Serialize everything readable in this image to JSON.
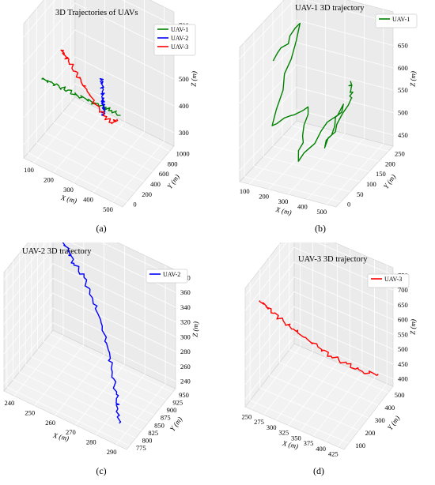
{
  "chart_data": [
    {
      "type": "line",
      "panel_caption": "(a)",
      "title": "3D Trajectories of UAVs",
      "xlabel": "X (m)",
      "ylabel": "Y (m)",
      "zlabel": "Z (m)",
      "xticks": [
        "100",
        "200",
        "300",
        "400",
        "500"
      ],
      "yticks": [
        "0",
        "200",
        "400",
        "600",
        "800",
        "1000"
      ],
      "zticks": [
        "300",
        "400",
        "500",
        "600",
        "700"
      ],
      "legend": [
        "UAV-1",
        "UAV-2",
        "UAV-3"
      ],
      "colors": [
        "#008000",
        "#0000ff",
        "#ff0000"
      ],
      "grid": true,
      "legend_position": "top-right",
      "series": [
        {
          "name": "UAV-1",
          "color": "#008000",
          "x": [
            150,
            190,
            230,
            270,
            310,
            350,
            390,
            430,
            470,
            510
          ],
          "y": [
            250,
            250,
            255,
            250,
            252,
            248,
            250,
            252,
            250,
            250
          ],
          "z": [
            520,
            525,
            520,
            528,
            524,
            530,
            526,
            530,
            534,
            532
          ]
        },
        {
          "name": "UAV-2",
          "color": "#0000ff",
          "x": [
            250,
            255,
            262,
            270,
            276,
            282,
            286,
            288
          ],
          "y": [
            950,
            930,
            910,
            890,
            870,
            850,
            830,
            820
          ],
          "z": [
            360,
            350,
            320,
            300,
            290,
            280,
            260,
            250
          ]
        },
        {
          "name": "UAV-3",
          "color": "#ff0000",
          "x": [
            255,
            260,
            270,
            290,
            310,
            330,
            360,
            390,
            420,
            430
          ],
          "y": [
            200,
            230,
            260,
            300,
            330,
            360,
            390,
            420,
            460,
            500
          ],
          "z": [
            720,
            690,
            660,
            610,
            570,
            520,
            470,
            420,
            390,
            400
          ]
        }
      ]
    },
    {
      "type": "line",
      "panel_caption": "(b)",
      "title": "UAV-1 3D trajectory",
      "xlabel": "X (m)",
      "ylabel": "Y (m)",
      "zlabel": "Z (m)",
      "xticks": [
        "100",
        "200",
        "300",
        "400",
        "500"
      ],
      "yticks": [
        "0",
        "50",
        "100",
        "150",
        "200",
        "250"
      ],
      "zticks": [
        "450",
        "500",
        "550",
        "600",
        "650",
        "700"
      ],
      "legend": [
        "UAV-1"
      ],
      "colors": [
        "#008000"
      ],
      "grid": true,
      "legend_position": "top-right",
      "series": [
        {
          "name": "UAV-1",
          "color": "#008000",
          "x": [
            230,
            250,
            270,
            290,
            310,
            330,
            350,
            370,
            390,
            410
          ],
          "y": [
            120,
            122,
            118,
            121,
            119,
            123,
            120,
            122,
            121,
            120
          ],
          "z": [
            540,
            545,
            530,
            528,
            520,
            525,
            522,
            530,
            535,
            540
          ]
        }
      ]
    },
    {
      "type": "line",
      "panel_caption": "(c)",
      "title": "UAV-2 3D trajectory",
      "xlabel": "X (m)",
      "ylabel": "Y (m)",
      "zlabel": "Z (m)",
      "xticks": [
        "240",
        "250",
        "260",
        "270",
        "280",
        "290"
      ],
      "yticks": [
        "775",
        "800",
        "825",
        "850",
        "875",
        "900",
        "925",
        "950"
      ],
      "zticks": [
        "240",
        "260",
        "280",
        "300",
        "320",
        "340",
        "360",
        "380"
      ],
      "legend": [
        "UAV-2"
      ],
      "colors": [
        "#0000ff"
      ],
      "grid": true,
      "legend_position": "top-right",
      "series": [
        {
          "name": "UAV-2",
          "color": "#0000ff",
          "x": [
            243,
            248,
            252,
            258,
            264,
            270,
            276,
            280,
            284,
            286,
            288
          ],
          "y": [
            950,
            940,
            930,
            920,
            905,
            890,
            870,
            855,
            840,
            830,
            820
          ],
          "z": [
            355,
            350,
            345,
            340,
            330,
            315,
            300,
            285,
            270,
            260,
            250
          ]
        }
      ]
    },
    {
      "type": "line",
      "panel_caption": "(d)",
      "title": "UAV-3 3D trajectory",
      "xlabel": "X (m)",
      "ylabel": "Y (m)",
      "zlabel": "Z (m)",
      "xticks": [
        "250",
        "275",
        "300",
        "325",
        "350",
        "375",
        "400",
        "425"
      ],
      "yticks": [
        "100",
        "200",
        "300",
        "400",
        "500"
      ],
      "zticks": [
        "400",
        "450",
        "500",
        "550",
        "600",
        "650",
        "700",
        "750"
      ],
      "legend": [
        "UAV-3"
      ],
      "colors": [
        "#ff0000"
      ],
      "grid": true,
      "legend_position": "top-right",
      "series": [
        {
          "name": "UAV-3",
          "color": "#ff0000",
          "x": [
            255,
            262,
            270,
            282,
            295,
            310,
            330,
            350,
            375,
            400,
            425
          ],
          "y": [
            150,
            170,
            200,
            230,
            260,
            290,
            320,
            350,
            380,
            410,
            440
          ],
          "z": [
            740,
            710,
            670,
            630,
            590,
            550,
            510,
            470,
            440,
            410,
            400
          ]
        }
      ]
    }
  ]
}
